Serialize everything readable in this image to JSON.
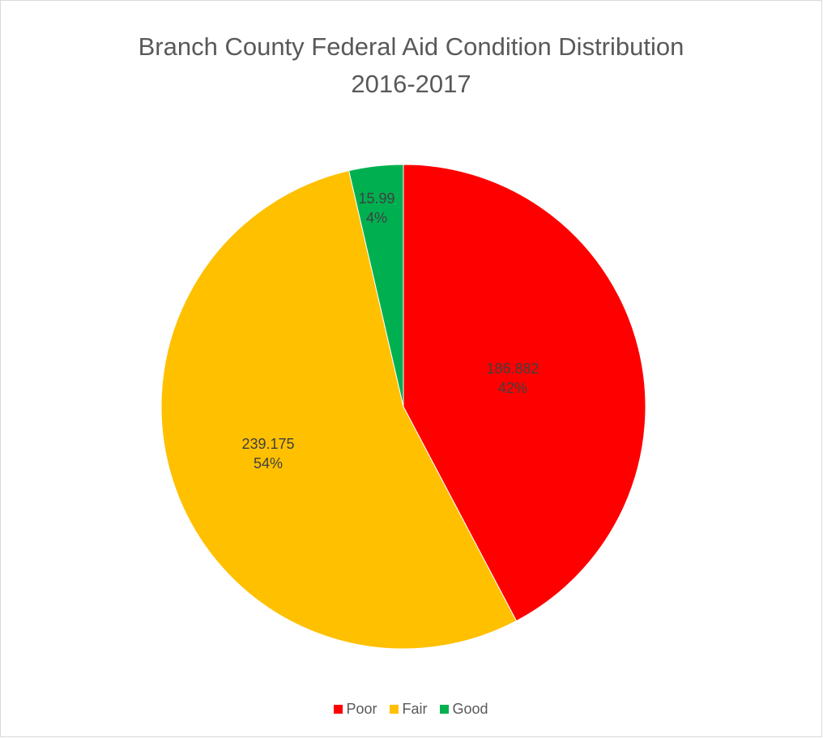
{
  "chart_data": {
    "type": "pie",
    "title": "Branch County Federal Aid Condition Distribution",
    "subtitle": "2016-2017",
    "categories": [
      "Poor",
      "Fair",
      "Good"
    ],
    "values": [
      186.882,
      239.175,
      15.99
    ],
    "percent_labels": [
      "42%",
      "54%",
      "4%"
    ],
    "value_labels": [
      "186.882",
      "239.175",
      "15.99"
    ],
    "colors": [
      "#ff0000",
      "#ffc000",
      "#00b050"
    ],
    "start_angle": "12 o'clock",
    "direction": "clockwise",
    "legend": {
      "position": "bottom",
      "entries": [
        "Poor",
        "Fair",
        "Good"
      ]
    }
  }
}
